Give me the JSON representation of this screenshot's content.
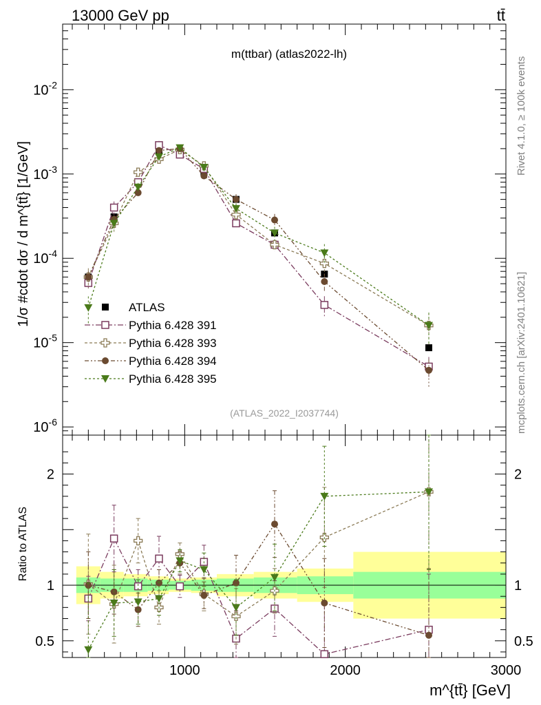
{
  "header": {
    "left": "13000 GeV pp",
    "right": "tt̄"
  },
  "side": {
    "top": "Rivet 4.1.0, ≥ 100k events",
    "bottom": "mcplots.cern.ch [arXiv:2401.10621]"
  },
  "chart_data": {
    "type": "scatter",
    "title": "m(ttbar) (atlas2022-lh)",
    "watermark": "(ATLAS_2022_I2037744)",
    "xlabel": "m^{tt̄} [GeV]",
    "ylabel": "1/σ #cdot dσ / d m^{tt̄} [1/GeV]",
    "ratio_ylabel": "Ratio to ATLAS",
    "xlim": [
      240,
      3000
    ],
    "ylim": [
      8e-07,
      0.06
    ],
    "ratio_ylim": [
      0.35,
      2.35
    ],
    "x_ticks": [
      1000,
      2000,
      3000
    ],
    "x_tick_labels": [
      "1000",
      "2000",
      "3000"
    ],
    "y_ticks": [
      1e-06,
      1e-05,
      0.0001,
      0.001,
      0.01
    ],
    "y_tick_labels": [
      "10^{-6}",
      "10^{-5}",
      "10^{-4}",
      "10^{-3}",
      "10^{-2}"
    ],
    "ratio_ticks": [
      0.5,
      1,
      2
    ],
    "ratio_tick_labels": [
      "0.5",
      "1",
      "2"
    ],
    "x": [
      400,
      560,
      710,
      840,
      970,
      1120,
      1320,
      1560,
      1870,
      2520
    ],
    "bin_edges": [
      325,
      475,
      620,
      770,
      900,
      1040,
      1200,
      1430,
      1700,
      2050,
      3000
    ],
    "band_inner": [
      0.07,
      0.06,
      0.06,
      0.05,
      0.04,
      0.05,
      0.06,
      0.07,
      0.08,
      0.12
    ],
    "band_outer": [
      0.17,
      0.12,
      0.1,
      0.08,
      0.06,
      0.07,
      0.1,
      0.12,
      0.15,
      0.3
    ],
    "series": [
      {
        "name": "ATLAS",
        "color": "#000000",
        "marker": "square-filled",
        "values": [
          6e-05,
          0.00031,
          0.0008,
          0.00185,
          0.0017,
          0.00105,
          0.0005,
          0.0002,
          6.5e-05,
          8.7e-06
        ],
        "ratio": [
          1,
          1,
          1,
          1,
          1,
          1,
          1,
          1,
          1,
          1
        ]
      },
      {
        "name": "Pythia 6.428 391",
        "color": "#7a3b5e",
        "marker": "square-open",
        "values": [
          5.1e-05,
          0.0004,
          0.0008,
          0.0022,
          0.0017,
          0.00115,
          0.00026,
          0.000145,
          2.8e-05,
          5.2e-06
        ],
        "ratio": [
          0.88,
          1.42,
          0.99,
          1.24,
          0.99,
          1.21,
          0.52,
          0.79,
          0.38,
          0.6
        ],
        "ratio_err": [
          0.2,
          0.3,
          0.15,
          0.2,
          0.1,
          0.15,
          0.25,
          0.25,
          0.45,
          0.5
        ]
      },
      {
        "name": "Pythia 6.428 393",
        "color": "#8a7a55",
        "marker": "cross-open",
        "values": [
          6e-05,
          0.00026,
          0.00105,
          0.0015,
          0.00195,
          0.00125,
          0.00033,
          0.000145,
          8.7e-05,
          1.6e-05
        ],
        "ratio": [
          1.01,
          0.83,
          1.4,
          0.8,
          1.28,
          0.92,
          0.72,
          0.95,
          1.43,
          1.84
        ],
        "ratio_err": [
          0.45,
          0.35,
          0.2,
          0.15,
          0.1,
          0.15,
          0.25,
          0.2,
          0.45,
          0.7
        ]
      },
      {
        "name": "Pythia 6.428 394",
        "color": "#6b4a30",
        "marker": "circle-filled",
        "values": [
          6e-05,
          0.00029,
          0.0006,
          0.0019,
          0.002,
          0.00095,
          0.0005,
          0.000285,
          5.3e-05,
          4.7e-06
        ],
        "ratio": [
          1.0,
          0.94,
          0.78,
          1.02,
          1.2,
          0.91,
          1.02,
          1.55,
          0.84,
          0.55
        ],
        "ratio_err": [
          0.3,
          0.2,
          0.15,
          0.12,
          0.1,
          0.12,
          0.25,
          0.3,
          0.4,
          0.6
        ]
      },
      {
        "name": "Pythia 6.428 395",
        "color": "#4a7a1a",
        "marker": "triangle-down-filled",
        "values": [
          2.6e-05,
          0.00026,
          0.0007,
          0.0016,
          0.00205,
          0.0012,
          0.00039,
          0.0002,
          0.000116,
          1.6e-05
        ],
        "ratio": [
          0.42,
          0.84,
          0.85,
          0.88,
          1.22,
          1.14,
          0.8,
          1.07,
          1.8,
          1.84
        ],
        "ratio_err": [
          0.6,
          0.3,
          0.2,
          0.15,
          0.1,
          0.15,
          0.25,
          0.3,
          0.45,
          0.7
        ]
      }
    ]
  }
}
